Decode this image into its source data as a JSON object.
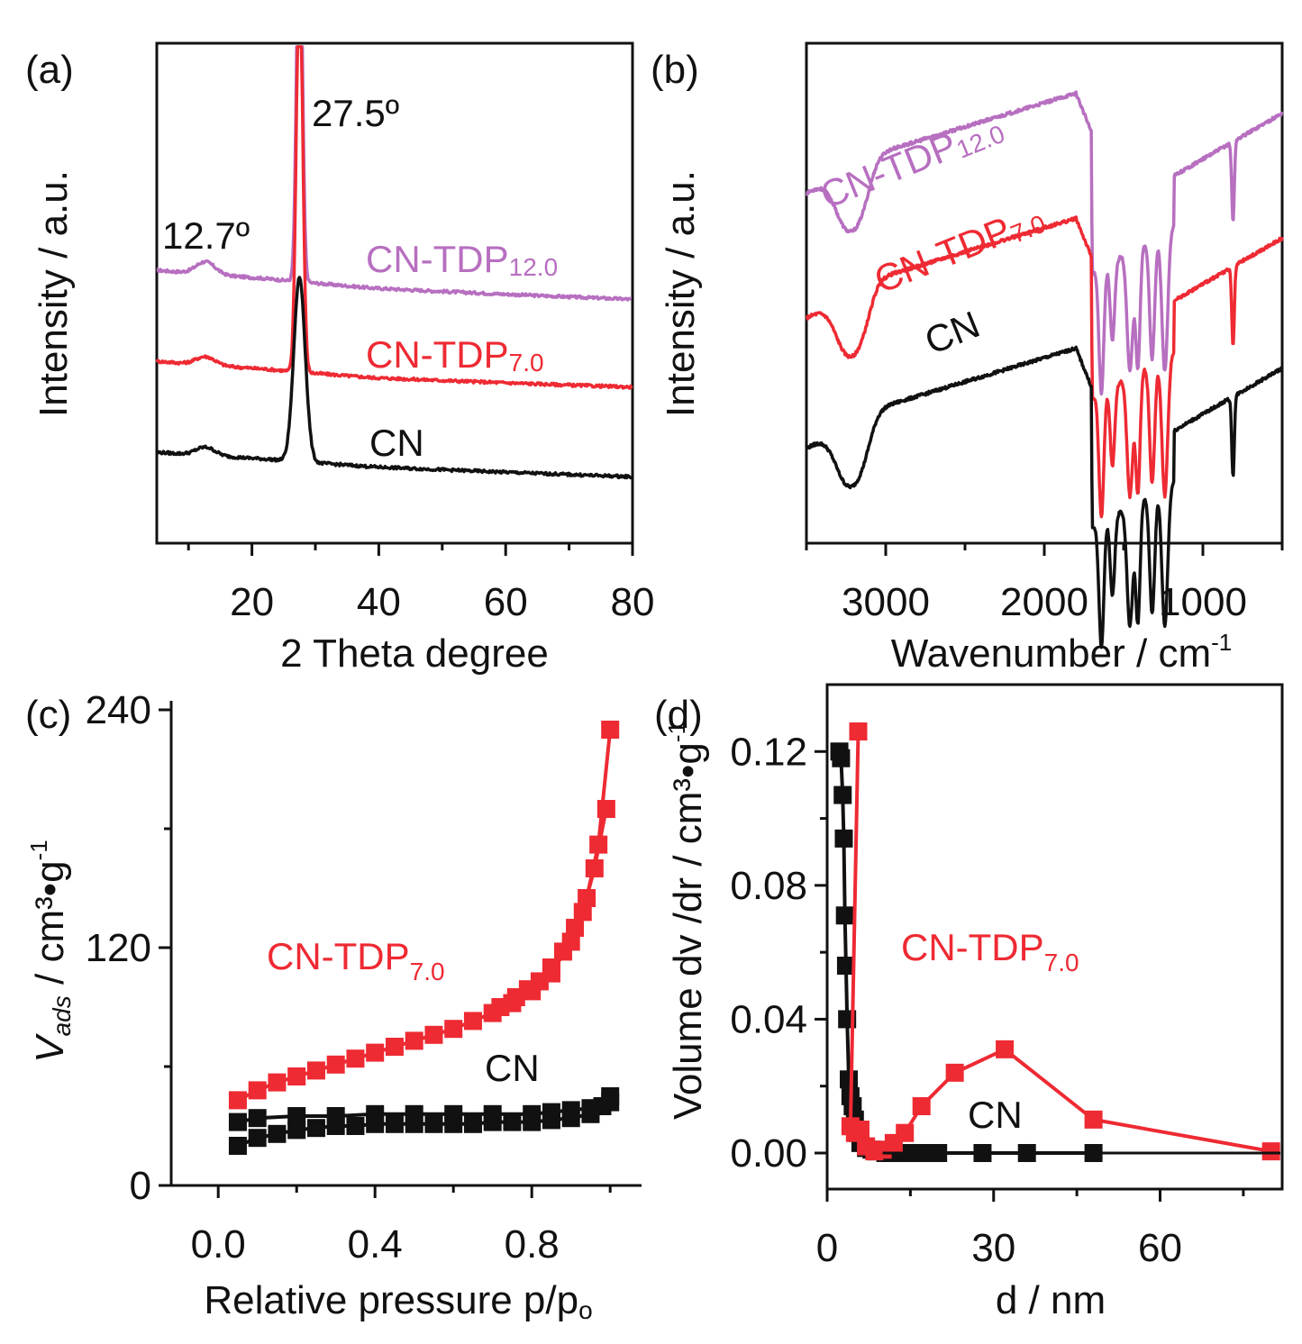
{
  "colors": {
    "black": "#111111",
    "red": "#ee2a33",
    "purple": "#b76fc0"
  },
  "panel_a": {
    "label": "(a)",
    "xlabel": "2 Theta degree",
    "ylabel": "Intensity / a.u.",
    "peak_labels": [
      "27.5º",
      "12.7º"
    ],
    "series_labels": {
      "s1": "CN-TDP",
      "s1_sub": "12.0",
      "s2": "CN-TDP",
      "s2_sub": "7.0",
      "s3": "CN"
    }
  },
  "panel_b": {
    "label": "(b)",
    "xlabel": "Wavenumber / cm",
    "xlabel_sup": "-1",
    "ylabel": "Intensity / a.u.",
    "series_labels": {
      "s1": "CN-TDP",
      "s1_sub": "12.0",
      "s2": "CN-TDP",
      "s2_sub": "7.0",
      "s3": "CN"
    }
  },
  "panel_c": {
    "label": "(c)",
    "xlabel": "Relative pressure p/p",
    "xlabel_sub": "o",
    "ylabel_v": "V",
    "ylabel_sub": "ads",
    "ylabel_rest": " / cm³•g",
    "ylabel_sup": "-1",
    "series_labels": {
      "s1": "CN-TDP",
      "s1_sub": "7.0",
      "s2": "CN"
    }
  },
  "panel_d": {
    "label": "(d)",
    "xlabel": "d / nm",
    "ylabel": "Volume dv /dr / cm³•g",
    "ylabel_sup": "-1",
    "series_labels": {
      "s1": "CN-TDP",
      "s1_sub": "7.0",
      "s2": "CN"
    }
  },
  "chart_data": [
    {
      "panel": "a",
      "type": "line",
      "xlabel": "2 Theta degree",
      "ylabel": "Intensity / a.u.",
      "xlim": [
        5,
        80
      ],
      "xticks": [
        20,
        40,
        60,
        80
      ],
      "y_ticks_shown": false,
      "series": [
        {
          "name": "CN-TDP12.0",
          "color": "#b76fc0",
          "offset": 0.5,
          "baseline": [
            0.1,
            0.08,
            0.06
          ],
          "peaks": [
            {
              "x": 12.7,
              "h": 0.03,
              "w": 1.5
            },
            {
              "x": 27.5,
              "h": 0.96,
              "w": 0.45
            }
          ]
        },
        {
          "name": "CN-TDP7.0",
          "color": "#ee2a33",
          "offset": 0.31,
          "baseline": [
            0.09,
            0.07,
            0.055
          ],
          "peaks": [
            {
              "x": 12.7,
              "h": 0.02,
              "w": 1.5
            },
            {
              "x": 27.5,
              "h": 0.99,
              "w": 0.5
            }
          ]
        },
        {
          "name": "CN",
          "color": "#111111",
          "offset": 0.11,
          "baseline": [
            0.09,
            0.075,
            0.06
          ],
          "peaks": [
            {
              "x": 12.7,
              "h": 0.02,
              "w": 1.5
            },
            {
              "x": 27.5,
              "h": 0.45,
              "w": 0.9
            }
          ]
        }
      ]
    },
    {
      "panel": "b",
      "type": "line",
      "xlabel": "Wavenumber / cm-1",
      "ylabel": "Intensity / a.u.",
      "xlim": [
        3500,
        500
      ],
      "xticks": [
        3000,
        2000,
        1000
      ],
      "y_ticks_shown": false,
      "series": [
        {
          "name": "CN-TDP12.0",
          "color": "#b76fc0",
          "offset": 0.64
        },
        {
          "name": "CN-TDP7.0",
          "color": "#ee2a33",
          "offset": 0.39
        },
        {
          "name": "CN",
          "color": "#111111",
          "offset": 0.13
        }
      ]
    },
    {
      "panel": "c",
      "type": "scatter",
      "xlabel": "Relative pressure p/po",
      "ylabel": "Vads / cm3•g-1",
      "xlim": [
        -0.12,
        1.08
      ],
      "ylim": [
        0,
        240
      ],
      "xticks": [
        0.0,
        0.4,
        0.8
      ],
      "yticks": [
        0,
        120,
        240
      ],
      "series": [
        {
          "name": "CN-TDP7.0",
          "color": "#ee2a33",
          "x": [
            0.05,
            0.1,
            0.15,
            0.2,
            0.25,
            0.3,
            0.35,
            0.4,
            0.45,
            0.5,
            0.55,
            0.6,
            0.65,
            0.7,
            0.75,
            0.8,
            0.85,
            0.9,
            0.93,
            0.96,
            0.99
          ],
          "y": [
            43,
            48,
            52,
            55,
            58,
            61,
            64,
            67,
            70,
            73,
            76,
            79,
            83,
            87,
            92,
            98,
            107,
            123,
            138,
            160,
            190
          ]
        },
        {
          "name": "CN-TDP7.0 desorption",
          "color": "#ee2a33",
          "x": [
            1.0,
            0.97,
            0.94,
            0.91,
            0.88,
            0.85,
            0.82,
            0.79,
            0.76,
            0.72
          ],
          "y": [
            230,
            172,
            145,
            130,
            118,
            110,
            103,
            99,
            95,
            90
          ]
        },
        {
          "name": "CN",
          "color": "#111111",
          "x": [
            0.05,
            0.1,
            0.15,
            0.2,
            0.25,
            0.3,
            0.35,
            0.4,
            0.45,
            0.5,
            0.55,
            0.6,
            0.65,
            0.7,
            0.75,
            0.8,
            0.85,
            0.9,
            0.95,
            0.98,
            1.0
          ],
          "y": [
            20,
            24,
            26,
            28,
            29,
            30,
            30,
            31,
            31,
            31,
            31,
            31,
            31,
            32,
            32,
            32,
            33,
            34,
            36,
            40,
            45
          ]
        },
        {
          "name": "CN desorption",
          "color": "#111111",
          "x": [
            1.0,
            0.95,
            0.9,
            0.85,
            0.8,
            0.7,
            0.6,
            0.5,
            0.4,
            0.3,
            0.2,
            0.1,
            0.05
          ],
          "y": [
            42,
            39,
            38,
            37,
            36,
            36,
            36,
            36,
            36,
            35,
            35,
            34,
            32
          ]
        }
      ]
    },
    {
      "panel": "d",
      "type": "line",
      "xlabel": "d / nm",
      "ylabel": "Volume dv /dr / cm3•g-1",
      "xlim": [
        0,
        82
      ],
      "ylim": [
        0,
        0.14
      ],
      "xticks": [
        0,
        30,
        60
      ],
      "yticks": [
        0.0,
        0.04,
        0.08,
        0.12
      ],
      "series": [
        {
          "name": "CN-TDP7.0",
          "color": "#ee2a33",
          "x": [
            5.6,
            4.2,
            5.0,
            6.0,
            7.0,
            8.5,
            10,
            12,
            14,
            17,
            23,
            32,
            48,
            80
          ],
          "y": [
            0.126,
            0.008,
            0.006,
            0.007,
            0.002,
            0.0005,
            0.001,
            0.003,
            0.006,
            0.014,
            0.024,
            0.031,
            0.01,
            0.0005
          ]
        },
        {
          "name": "CN",
          "color": "#111111",
          "x": [
            2.2,
            2.5,
            2.8,
            3.0,
            3.2,
            3.4,
            3.6,
            3.9,
            4.2,
            4.6,
            5.0,
            5.5,
            6.0,
            7.0,
            8.0,
            9.0,
            10.5,
            12,
            15,
            18,
            20,
            28,
            36,
            48
          ],
          "y": [
            0.12,
            0.118,
            0.107,
            0.094,
            0.071,
            0.056,
            0.04,
            0.022,
            0.017,
            0.014,
            0.01,
            0.006,
            0.003,
            0.0015,
            0.001,
            0.0005,
            0,
            0,
            0,
            0,
            0,
            0,
            0,
            0
          ]
        }
      ]
    }
  ]
}
